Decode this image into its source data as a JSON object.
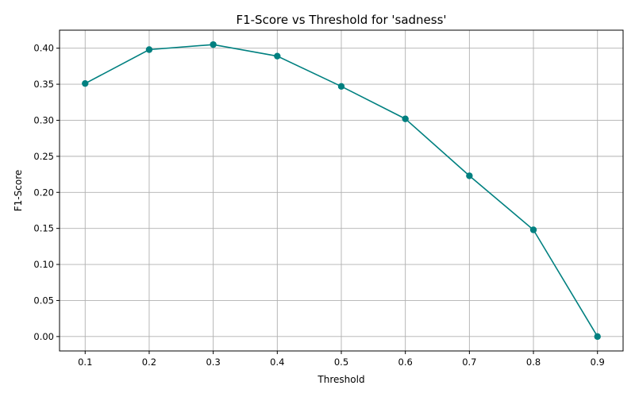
{
  "chart_data": {
    "type": "line",
    "title": "F1-Score vs Threshold for 'sadness'",
    "xlabel": "Threshold",
    "ylabel": "F1-Score",
    "x": [
      0.1,
      0.2,
      0.3,
      0.4,
      0.5,
      0.6,
      0.7,
      0.8,
      0.9
    ],
    "series": [
      {
        "values": [
          0.351,
          0.398,
          0.405,
          0.389,
          0.347,
          0.302,
          0.223,
          0.148,
          0.0
        ],
        "color": "#008080",
        "marker": "circle"
      }
    ],
    "xticks": [
      "0.1",
      "0.2",
      "0.3",
      "0.4",
      "0.5",
      "0.6",
      "0.7",
      "0.8",
      "0.9"
    ],
    "yticks": [
      "0.00",
      "0.05",
      "0.10",
      "0.15",
      "0.20",
      "0.25",
      "0.30",
      "0.35",
      "0.40"
    ],
    "xlim": [
      0.06,
      0.94
    ],
    "ylim": [
      -0.02,
      0.425
    ],
    "grid": true
  }
}
